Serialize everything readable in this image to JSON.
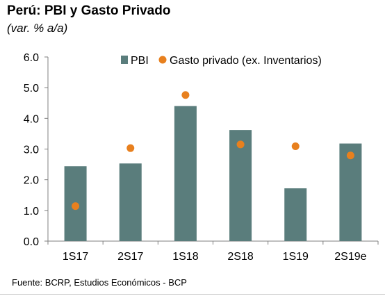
{
  "header": {
    "title": "Perú: PBI y Gasto Privado",
    "subtitle": "(var. % a/a)"
  },
  "footer": {
    "source": "Fuente: BCRP, Estudios Económicos - BCP"
  },
  "colors": {
    "bar": "#5a7d7c",
    "dot": "#e8801e",
    "axis": "#7f7f7f"
  },
  "chart_data": {
    "type": "bar",
    "categories": [
      "1S17",
      "2S17",
      "1S18",
      "2S18",
      "1S19",
      "2S19e"
    ],
    "series": [
      {
        "name": "PBI",
        "type": "bar",
        "values": [
          2.44,
          2.53,
          4.4,
          3.62,
          1.72,
          3.18
        ]
      },
      {
        "name": "Gasto privado (ex. Inventarios)",
        "type": "scatter",
        "values": [
          1.14,
          3.03,
          4.76,
          3.15,
          3.09,
          2.79
        ]
      }
    ],
    "ylim": [
      0,
      6
    ],
    "yticks": [
      "0.0",
      "1.0",
      "2.0",
      "3.0",
      "4.0",
      "5.0",
      "6.0"
    ],
    "legend": "top-right",
    "grid": false
  }
}
